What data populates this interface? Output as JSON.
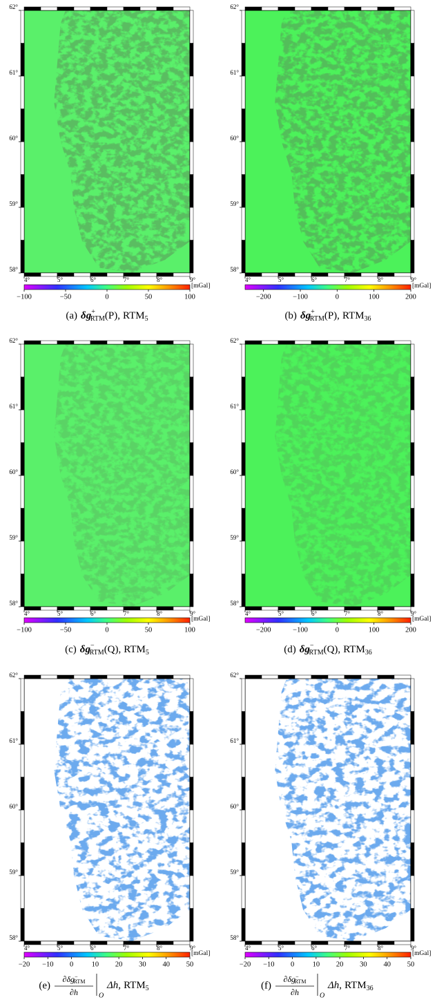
{
  "chart_data": [
    {
      "type": "map",
      "xlim": [
        4,
        9
      ],
      "ylim": [
        58,
        62
      ],
      "xticks": [
        {
          "value": 4,
          "label": "4°"
        },
        {
          "value": 5,
          "label": "5°"
        },
        {
          "value": 6,
          "label": "6°"
        },
        {
          "value": 7,
          "label": "7°"
        },
        {
          "value": 8,
          "label": "8°"
        },
        {
          "value": 9,
          "label": "9°"
        }
      ],
      "yticks": [
        {
          "value": 58,
          "label": "58°"
        },
        {
          "value": 59,
          "label": "59°"
        },
        {
          "value": 60,
          "label": "60°"
        },
        {
          "value": 61,
          "label": "61°"
        },
        {
          "value": 62,
          "label": "62°"
        }
      ],
      "colorbar": {
        "lim": [
          -100,
          100
        ],
        "ticks": [
          {
            "value": -100,
            "label": "−100"
          },
          {
            "value": -50,
            "label": "−50"
          },
          0,
          50,
          100
        ],
        "unit": "[mGal]"
      },
      "caption": {
        "label": "(a)",
        "symbol": "δg",
        "sup": "+",
        "sub": "RTM",
        "arg": "(P),",
        "model": "RTM",
        "model_sub": "5"
      }
    },
    {
      "type": "map",
      "xlim": [
        4,
        9
      ],
      "ylim": [
        58,
        62
      ],
      "xticks": [
        {
          "value": 4,
          "label": "4°"
        },
        {
          "value": 5,
          "label": "5°"
        },
        {
          "value": 6,
          "label": "6°"
        },
        {
          "value": 7,
          "label": "7°"
        },
        {
          "value": 8,
          "label": "8°"
        },
        {
          "value": 9,
          "label": "9°"
        }
      ],
      "yticks": [
        {
          "value": 58,
          "label": "58°"
        },
        {
          "value": 59,
          "label": "59°"
        },
        {
          "value": 60,
          "label": "60°"
        },
        {
          "value": 61,
          "label": "61°"
        },
        {
          "value": 62,
          "label": "62°"
        }
      ],
      "colorbar": {
        "lim": [
          -250,
          200
        ],
        "ticks": [
          {
            "value": -200,
            "label": "−200"
          },
          {
            "value": -100,
            "label": "−100"
          },
          0,
          100,
          200
        ],
        "unit": "[mGal]"
      },
      "caption": {
        "label": "(b)",
        "symbol": "δg",
        "sup": "+",
        "sub": "RTM",
        "arg": "(P),",
        "model": "RTM",
        "model_sub": "36"
      }
    },
    {
      "type": "map",
      "xlim": [
        4,
        9
      ],
      "ylim": [
        58,
        62
      ],
      "xticks": [
        {
          "value": 4,
          "label": "4°"
        },
        {
          "value": 5,
          "label": "5°"
        },
        {
          "value": 6,
          "label": "6°"
        },
        {
          "value": 7,
          "label": "7°"
        },
        {
          "value": 8,
          "label": "8°"
        },
        {
          "value": 9,
          "label": "9°"
        }
      ],
      "yticks": [
        {
          "value": 58,
          "label": "58°"
        },
        {
          "value": 59,
          "label": "59°"
        },
        {
          "value": 60,
          "label": "60°"
        },
        {
          "value": 61,
          "label": "61°"
        },
        {
          "value": 62,
          "label": "62°"
        }
      ],
      "colorbar": {
        "lim": [
          -100,
          100
        ],
        "ticks": [
          {
            "value": -100,
            "label": "−100"
          },
          {
            "value": -50,
            "label": "−50"
          },
          0,
          50,
          100
        ],
        "unit": "[mGal]"
      },
      "caption": {
        "label": "(c)",
        "symbol": "δg",
        "sup": "−",
        "sub": "RTM",
        "arg": "(Q),",
        "model": "RTM",
        "model_sub": "5"
      }
    },
    {
      "type": "map",
      "xlim": [
        4,
        9
      ],
      "ylim": [
        58,
        62
      ],
      "xticks": [
        {
          "value": 4,
          "label": "4°"
        },
        {
          "value": 5,
          "label": "5°"
        },
        {
          "value": 6,
          "label": "6°"
        },
        {
          "value": 7,
          "label": "7°"
        },
        {
          "value": 8,
          "label": "8°"
        },
        {
          "value": 9,
          "label": "9°"
        }
      ],
      "yticks": [
        {
          "value": 58,
          "label": "58°"
        },
        {
          "value": 59,
          "label": "59°"
        },
        {
          "value": 60,
          "label": "60°"
        },
        {
          "value": 61,
          "label": "61°"
        },
        {
          "value": 62,
          "label": "62°"
        }
      ],
      "colorbar": {
        "lim": [
          -250,
          200
        ],
        "ticks": [
          {
            "value": -200,
            "label": "−200"
          },
          {
            "value": -100,
            "label": "−100"
          },
          0,
          100,
          200
        ],
        "unit": "[mGal]"
      },
      "caption": {
        "label": "(d)",
        "symbol": "δg",
        "sup": "−",
        "sub": "RTM",
        "arg": "(Q),",
        "model": "RTM",
        "model_sub": "36"
      }
    },
    {
      "type": "map",
      "xlim": [
        4,
        9
      ],
      "ylim": [
        58,
        62
      ],
      "xticks": [
        {
          "value": 4,
          "label": "4°"
        },
        {
          "value": 5,
          "label": "5°"
        },
        {
          "value": 6,
          "label": "6°"
        },
        {
          "value": 7,
          "label": "7°"
        },
        {
          "value": 8,
          "label": "8°"
        },
        {
          "value": 9,
          "label": "9°"
        }
      ],
      "yticks": [
        {
          "value": 58,
          "label": "58°"
        },
        {
          "value": 59,
          "label": "59°"
        },
        {
          "value": 60,
          "label": "60°"
        },
        {
          "value": 61,
          "label": "61°"
        },
        {
          "value": 62,
          "label": "62°"
        }
      ],
      "colorbar": {
        "lim": [
          -20,
          50
        ],
        "ticks": [
          {
            "value": -20,
            "label": "−20"
          },
          {
            "value": -10,
            "label": "−10"
          },
          0,
          10,
          20,
          30,
          40,
          50
        ],
        "unit": "[mGal]"
      },
      "caption": {
        "label": "(e)",
        "numerator": "∂δg",
        "sup": "−",
        "sub": "RTM",
        "denominator": "∂h",
        "eval": "O",
        "rest": "Δh,",
        "model": "RTM",
        "model_sub": "5"
      }
    },
    {
      "type": "map",
      "xlim": [
        4,
        9
      ],
      "ylim": [
        58,
        62
      ],
      "xticks": [
        {
          "value": 4,
          "label": "4°"
        },
        {
          "value": 5,
          "label": "5°"
        },
        {
          "value": 6,
          "label": "6°"
        },
        {
          "value": 7,
          "label": "7°"
        },
        {
          "value": 8,
          "label": "8°"
        },
        {
          "value": 9,
          "label": "9°"
        }
      ],
      "yticks": [
        {
          "value": 58,
          "label": "58°"
        },
        {
          "value": 59,
          "label": "59°"
        },
        {
          "value": 60,
          "label": "60°"
        },
        {
          "value": 61,
          "label": "61°"
        },
        {
          "value": 62,
          "label": "62°"
        }
      ],
      "colorbar": {
        "lim": [
          -20,
          50
        ],
        "ticks": [
          {
            "value": -20,
            "label": "−20"
          },
          {
            "value": -10,
            "label": "−10"
          },
          0,
          10,
          20,
          30,
          40,
          50
        ],
        "unit": "[mGal]"
      },
      "caption": {
        "label": "(f)",
        "numerator": "∂δg",
        "sup": "−",
        "sub": "RTM",
        "denominator": "∂h",
        "eval": "O",
        "rest": "Δh,",
        "model": "RTM",
        "model_sub": "36"
      }
    }
  ]
}
